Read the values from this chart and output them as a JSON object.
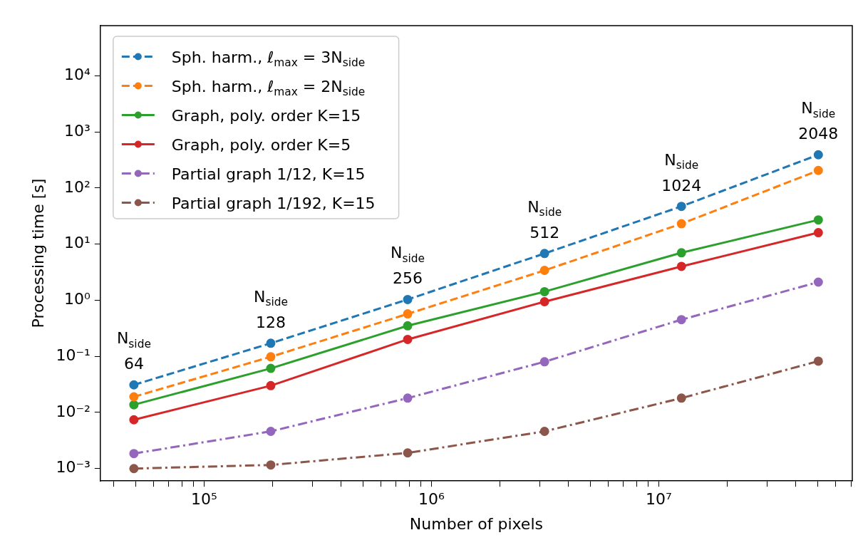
{
  "chart_data": {
    "type": "line",
    "xlabel": "Number of pixels",
    "ylabel": "Processing time [s]",
    "log": "xy",
    "grid": false,
    "legend": "top left",
    "marker": "circle",
    "x": [
      49152,
      196608,
      786432,
      3145728,
      12582912,
      50331648
    ],
    "xlim": [
      35000,
      71000000
    ],
    "xticks": [
      {
        "value": 40000,
        "label": null
      },
      {
        "value": 50000,
        "label": null
      },
      {
        "value": 60000,
        "label": null
      },
      {
        "value": 70000,
        "label": null
      },
      {
        "value": 80000,
        "label": null
      },
      {
        "value": 90000,
        "label": null
      },
      {
        "value": 100000,
        "label": "10⁵"
      },
      {
        "value": 200000,
        "label": null
      },
      {
        "value": 300000,
        "label": null
      },
      {
        "value": 400000,
        "label": null
      },
      {
        "value": 500000,
        "label": null
      },
      {
        "value": 600000,
        "label": null
      },
      {
        "value": 700000,
        "label": null
      },
      {
        "value": 800000,
        "label": null
      },
      {
        "value": 900000,
        "label": null
      },
      {
        "value": 1000000,
        "label": "10⁶"
      },
      {
        "value": 2000000,
        "label": null
      },
      {
        "value": 3000000,
        "label": null
      },
      {
        "value": 4000000,
        "label": null
      },
      {
        "value": 5000000,
        "label": null
      },
      {
        "value": 6000000,
        "label": null
      },
      {
        "value": 7000000,
        "label": null
      },
      {
        "value": 8000000,
        "label": null
      },
      {
        "value": 9000000,
        "label": null
      },
      {
        "value": 10000000,
        "label": "10⁷"
      },
      {
        "value": 20000000,
        "label": null
      },
      {
        "value": 30000000,
        "label": null
      },
      {
        "value": 40000000,
        "label": null
      },
      {
        "value": 50000000,
        "label": null
      },
      {
        "value": 60000000,
        "label": null
      },
      {
        "value": 70000000,
        "label": null
      }
    ],
    "ylim": [
      0.0006,
      78000
    ],
    "yticks": [
      {
        "value": 0.001,
        "label": "10⁻³"
      },
      {
        "value": 0.01,
        "label": "10⁻²"
      },
      {
        "value": 0.1,
        "label": "10⁻¹"
      },
      {
        "value": 1,
        "label": "10⁰"
      },
      {
        "value": 10,
        "label": "10¹"
      },
      {
        "value": 100,
        "label": "10²"
      },
      {
        "value": 1000,
        "label": "10³"
      },
      {
        "value": 10000,
        "label": "10⁴"
      }
    ],
    "series": [
      {
        "name": "Sph. harm., ℓ$_{max}$ = 3N$_{side}$",
        "color": "#1f77b4",
        "line_style": "dashed",
        "values": [
          0.031,
          0.171,
          1.03,
          6.8,
          47,
          390
        ]
      },
      {
        "name": "Sph. harm., ℓ$_{max}$ = 2N$_{side}$",
        "color": "#ff7f0e",
        "line_style": "dashed",
        "values": [
          0.019,
          0.098,
          0.57,
          3.4,
          23,
          205
        ]
      },
      {
        "name": "Graph, poly. order K=15",
        "color": "#2ca02c",
        "line_style": "solid",
        "values": [
          0.0137,
          0.061,
          0.35,
          1.42,
          7.0,
          27
        ]
      },
      {
        "name": "Graph, poly. order K=5",
        "color": "#d62728",
        "line_style": "solid",
        "values": [
          0.0074,
          0.03,
          0.2,
          0.94,
          4.0,
          16
        ]
      },
      {
        "name": "Partial graph 1/12, K=15",
        "color": "#9467bd",
        "line_style": "dashdot",
        "values": [
          0.00185,
          0.0046,
          0.018,
          0.08,
          0.45,
          2.1
        ]
      },
      {
        "name": "Partial graph 1/192, K=15",
        "color": "#8c564b",
        "line_style": "dashdot",
        "values": [
          0.001,
          0.00116,
          0.0019,
          0.0046,
          0.018,
          0.082
        ]
      }
    ],
    "annotations": [
      "N$_{side}$\n64",
      "N$_{side}$\n128",
      "N$_{side}$\n256",
      "N$_{side}$\n512",
      "N$_{side}$\n1024",
      "N$_{side}$\n2048"
    ]
  }
}
